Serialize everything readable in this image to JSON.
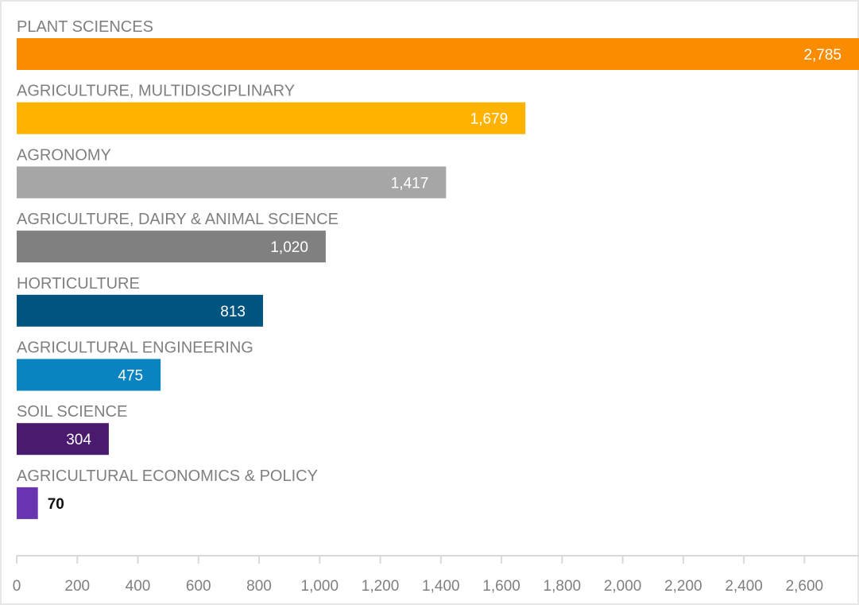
{
  "chart_data": {
    "type": "bar",
    "orientation": "horizontal",
    "title": "",
    "xlabel": "",
    "ylabel": "",
    "categories": [
      "PLANT SCIENCES",
      "AGRICULTURE, MULTIDISCIPLINARY",
      "AGRONOMY",
      "AGRICULTURE, DAIRY & ANIMAL SCIENCE",
      "HORTICULTURE",
      "AGRICULTURAL ENGINEERING",
      "SOIL SCIENCE",
      "AGRICULTURAL ECONOMICS & POLICY"
    ],
    "values": [
      2785,
      1679,
      1417,
      1020,
      813,
      475,
      304,
      70
    ],
    "value_labels": [
      "2,785",
      "1,679",
      "1,417",
      "1,020",
      "813",
      "475",
      "304",
      "70"
    ],
    "colors": [
      "#fb8c00",
      "#ffb300",
      "#a6a6a6",
      "#808080",
      "#005580",
      "#0a84c0",
      "#4a1a6e",
      "#6a35b0"
    ],
    "xlim": [
      0,
      2780
    ],
    "xticks": [
      0,
      200,
      400,
      600,
      800,
      1000,
      1200,
      1400,
      1600,
      1800,
      2000,
      2200,
      2400,
      2600
    ],
    "xtick_labels": [
      "0",
      "200",
      "400",
      "600",
      "800",
      "1,000",
      "1,200",
      "1,400",
      "1,600",
      "1,800",
      "2,000",
      "2,200",
      "2,400",
      "2,600"
    ],
    "grid": false,
    "legend": "none"
  }
}
